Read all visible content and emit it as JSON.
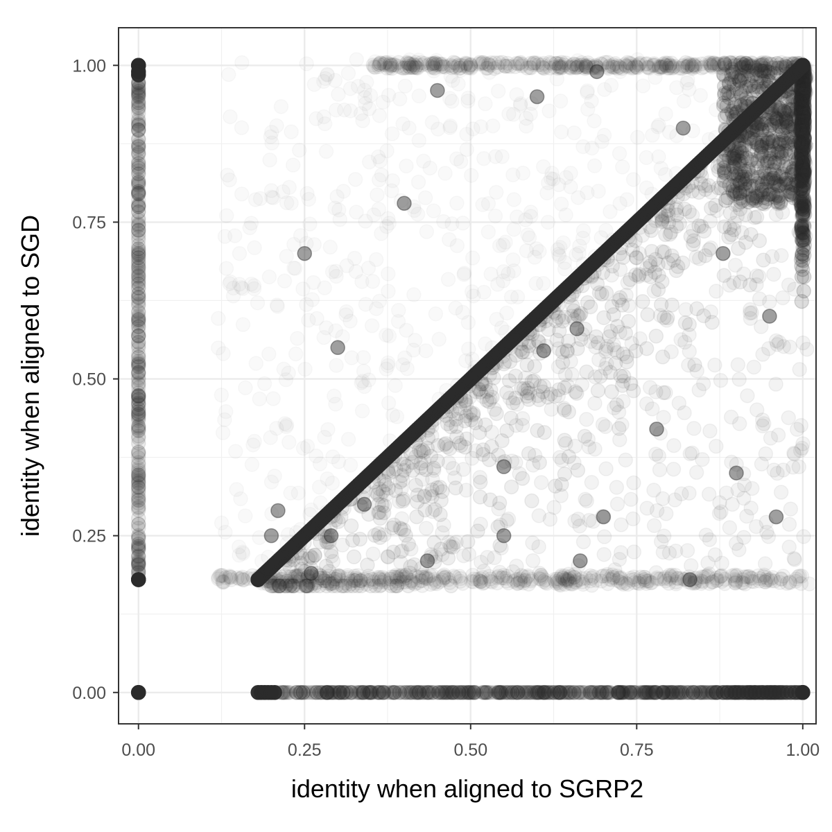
{
  "chart_data": {
    "type": "scatter",
    "title": "",
    "xlabel": "identity when aligned to SGRP2",
    "ylabel": "identity when aligned to SGD",
    "xlim": [
      -0.03,
      1.02
    ],
    "ylim": [
      -0.05,
      1.06
    ],
    "x_ticks": [
      "0.00",
      "0.25",
      "0.50",
      "0.75",
      "1.00"
    ],
    "y_ticks": [
      "0.00",
      "0.25",
      "0.50",
      "0.75",
      "1.00"
    ],
    "grid": true,
    "legend": "none",
    "point_color": "#2b2b2b",
    "point_alpha": 0.04,
    "features": {
      "diagonal_y_equals_x": {
        "x_range": [
          0.18,
          1.0
        ]
      },
      "vertical_band_x0": {
        "x": 0.0,
        "y_range": [
          0.18,
          1.0
        ]
      },
      "vertical_band_x1": {
        "x": 1.0,
        "y_range": [
          0.55,
          1.0
        ]
      },
      "horizontal_band_y0": {
        "y": 0.0,
        "x_range": [
          0.18,
          1.0
        ]
      },
      "horizontal_band_y1": {
        "y": 1.0,
        "x_range": [
          0.35,
          1.0
        ]
      },
      "floor_y018": {
        "y": 0.18,
        "x_range": [
          0.12,
          1.0
        ]
      },
      "dense_clusters": [
        [
          0.0,
          0.0
        ],
        [
          0.0,
          1.0
        ],
        [
          0.0,
          0.18
        ],
        [
          1.0,
          0.0
        ],
        [
          1.0,
          1.0
        ],
        [
          0.18,
          0.18
        ]
      ]
    },
    "points": [
      [
        0.66,
        0.58
      ],
      [
        0.61,
        0.545
      ],
      [
        0.21,
        0.29
      ],
      [
        0.29,
        0.25
      ],
      [
        0.26,
        0.19
      ],
      [
        0.435,
        0.21
      ],
      [
        0.665,
        0.21
      ],
      [
        0.2,
        0.25
      ],
      [
        0.34,
        0.3
      ],
      [
        0.55,
        0.36
      ],
      [
        0.78,
        0.42
      ],
      [
        0.9,
        0.35
      ],
      [
        0.45,
        0.96
      ],
      [
        0.69,
        0.99
      ],
      [
        0.82,
        0.9
      ],
      [
        0.95,
        0.6
      ],
      [
        0.7,
        0.28
      ],
      [
        0.83,
        0.18
      ],
      [
        0.4,
        0.78
      ],
      [
        0.25,
        0.7
      ],
      [
        0.88,
        0.7
      ],
      [
        0.55,
        0.25
      ],
      [
        0.96,
        0.28
      ],
      [
        0.6,
        0.95
      ],
      [
        0.3,
        0.55
      ]
    ]
  }
}
